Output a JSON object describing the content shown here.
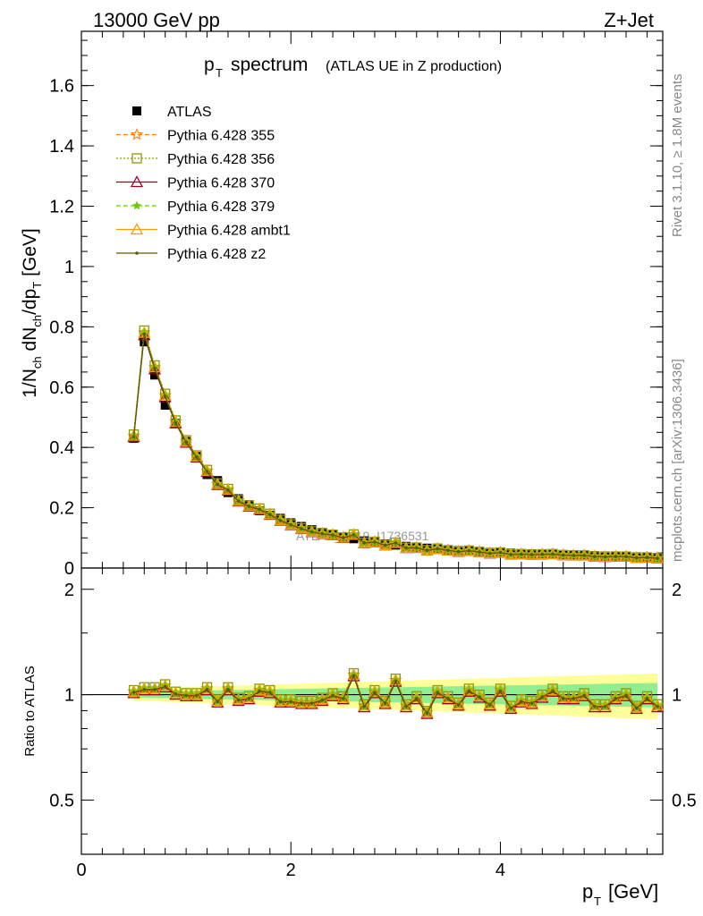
{
  "header": {
    "left": "13000 GeV pp",
    "right": "Z+Jet"
  },
  "title_main": "p",
  "title_sub": "T",
  "title_word": "spectrum",
  "title_extra": "(ATLAS UE in Z production)",
  "side": {
    "rivet": "Rivet 3.1.10, ≥ 1.8M events",
    "mcplots": "mcplots.cern.ch [arXiv:1306.3436]"
  },
  "watermark": "ATLAS_2019_I1736531",
  "colors": {
    "data": "#000000",
    "band_yellow": "#ffff99",
    "band_green": "#90ee90",
    "s355": "#ff7f0e",
    "s356": "#8c9a00",
    "s370": "#a00020",
    "s379": "#66cc00",
    "ambt1": "#f0a000",
    "z2": "#5a5a00"
  },
  "chart_data": [
    {
      "type": "line",
      "panel": "main",
      "ylabel": "1/N_ch dN_ch/dp_T [GeV]",
      "ylim": [
        0,
        1.78
      ],
      "xlim": [
        0,
        5.55
      ],
      "yticks": [
        "0",
        "0.2",
        "0.4",
        "0.6",
        "0.8",
        "1",
        "1.2",
        "1.4",
        "1.6"
      ],
      "x": [
        0.5,
        0.6,
        0.7,
        0.8,
        0.9,
        1.0,
        1.1,
        1.2,
        1.3,
        1.4,
        1.5,
        1.6,
        1.7,
        1.8,
        1.9,
        2.0,
        2.1,
        2.2,
        2.3,
        2.4,
        2.5,
        2.6,
        2.7,
        2.8,
        2.9,
        3.0,
        3.1,
        3.2,
        3.3,
        3.4,
        3.5,
        3.6,
        3.7,
        3.8,
        3.9,
        4.0,
        4.1,
        4.2,
        4.3,
        4.4,
        4.5,
        4.6,
        4.7,
        4.8,
        4.9,
        5.0,
        5.1,
        5.2,
        5.3,
        5.4,
        5.5
      ],
      "data_values": [
        0.43,
        0.75,
        0.64,
        0.54,
        0.48,
        0.42,
        0.37,
        0.31,
        0.29,
        0.25,
        0.23,
        0.21,
        0.19,
        0.175,
        0.165,
        0.15,
        0.138,
        0.127,
        0.118,
        0.11,
        0.103,
        0.097,
        0.09,
        0.085,
        0.08,
        0.076,
        0.072,
        0.069,
        0.066,
        0.063,
        0.06,
        0.058,
        0.056,
        0.054,
        0.052,
        0.05,
        0.049,
        0.048,
        0.047,
        0.046,
        0.045,
        0.044,
        0.043,
        0.042,
        0.041,
        0.04,
        0.039,
        0.038,
        0.037,
        0.036,
        0.035
      ],
      "legend": [
        "ATLAS",
        "Pythia 6.428 355",
        "Pythia 6.428 356",
        "Pythia 6.428 370",
        "Pythia 6.428 379",
        "Pythia 6.428 ambt1",
        "Pythia 6.428 z2"
      ]
    },
    {
      "type": "line",
      "panel": "ratio",
      "ylabel": "Ratio to ATLAS",
      "xlabel": "p_T [GeV]",
      "ylim": [
        0.35,
        2.3
      ],
      "xlim": [
        0,
        5.55
      ],
      "yticks": [
        "0.5",
        "1",
        "2"
      ],
      "xticks": [
        "0",
        "2",
        "4"
      ],
      "x": [
        0.5,
        0.6,
        0.7,
        0.8,
        0.9,
        1.0,
        1.1,
        1.2,
        1.3,
        1.4,
        1.5,
        1.6,
        1.7,
        1.8,
        1.9,
        2.0,
        2.1,
        2.2,
        2.3,
        2.4,
        2.5,
        2.6,
        2.7,
        2.8,
        2.9,
        3.0,
        3.1,
        3.2,
        3.3,
        3.4,
        3.5,
        3.6,
        3.7,
        3.8,
        3.9,
        4.0,
        4.1,
        4.2,
        4.3,
        4.4,
        4.5,
        4.6,
        4.7,
        4.8,
        4.9,
        5.0,
        5.1,
        5.2,
        5.3,
        5.4,
        5.5
      ],
      "ratio_values": [
        1.02,
        1.04,
        1.04,
        1.06,
        1.01,
        1.0,
        1.0,
        1.04,
        0.96,
        1.04,
        0.97,
        0.98,
        1.03,
        1.02,
        0.96,
        0.96,
        0.95,
        0.95,
        0.97,
        1.0,
        0.98,
        1.14,
        0.93,
        1.02,
        0.95,
        1.1,
        0.93,
        0.98,
        0.89,
        1.02,
        0.98,
        0.94,
        1.03,
        0.99,
        0.94,
        1.03,
        0.92,
        0.96,
        0.95,
        0.99,
        1.03,
        0.98,
        0.98,
        1.0,
        0.93,
        0.93,
        0.98,
        1.0,
        0.92,
        0.98,
        0.93
      ],
      "band_yellow_halfwidth_start": 0.04,
      "band_yellow_halfwidth_end": 0.15,
      "band_green_halfwidth_start": 0.02,
      "band_green_halfwidth_end": 0.08
    }
  ]
}
